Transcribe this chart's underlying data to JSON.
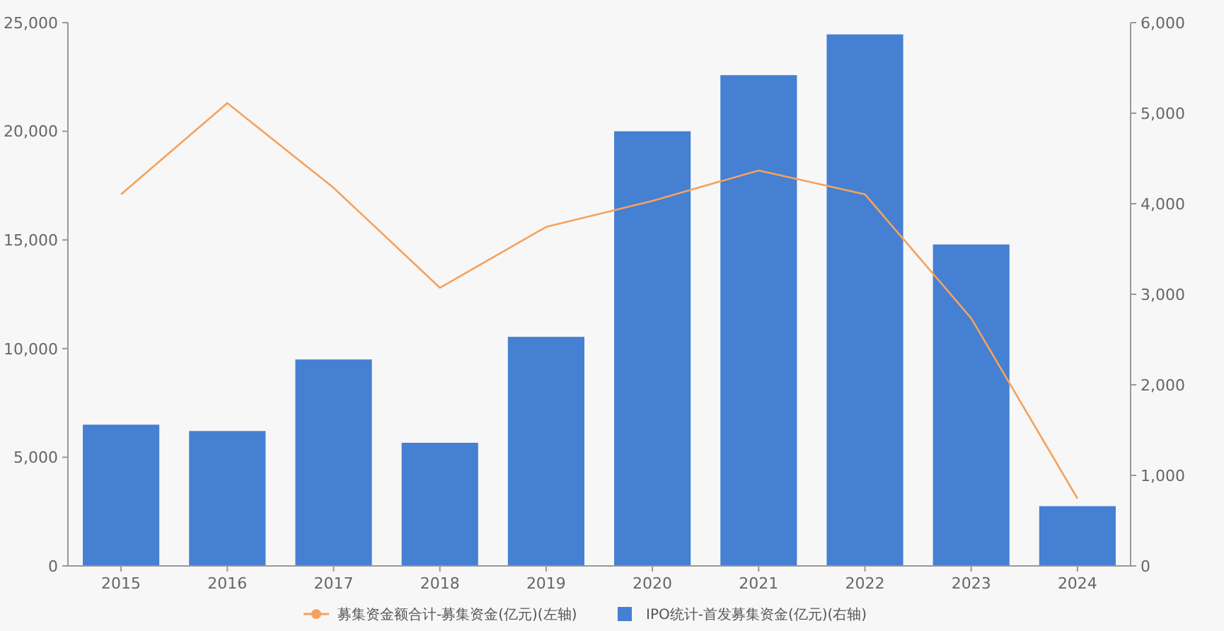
{
  "chart_data": {
    "type": "bar",
    "categories": [
      "2015",
      "2016",
      "2017",
      "2018",
      "2019",
      "2020",
      "2021",
      "2022",
      "2023",
      "2024"
    ],
    "series": [
      {
        "name": "募集资金额合计-募集资金(亿元)(左轴)",
        "type": "line",
        "color": "#f5a25d",
        "values": [
          17100,
          21300,
          17400,
          12800,
          15600,
          16800,
          18200,
          17100,
          11400,
          3100
        ]
      },
      {
        "name": "IPO统计-首发募集资金(亿元)(右轴)",
        "axis": "y2",
        "color": "#4580d2",
        "values": [
          1560,
          1490,
          2280,
          1360,
          2530,
          4800,
          5420,
          5870,
          3550,
          660
        ]
      }
    ],
    "ylim": [
      0,
      25000
    ],
    "yticks": [
      {
        "value": 0,
        "label": "0"
      },
      {
        "value": 5000,
        "label": "5,000"
      },
      {
        "value": 10000,
        "label": "10,000"
      },
      {
        "value": 15000,
        "label": "15,000"
      },
      {
        "value": 20000,
        "label": "20,000"
      },
      {
        "value": 25000,
        "label": "25,000"
      }
    ],
    "y2lim": [
      0,
      6000
    ],
    "y2ticks": [
      {
        "value": 0,
        "label": "0"
      },
      {
        "value": 1000,
        "label": "1,000"
      },
      {
        "value": 2000,
        "label": "2,000"
      },
      {
        "value": 3000,
        "label": "3,000"
      },
      {
        "value": 4000,
        "label": "4,000"
      },
      {
        "value": 5000,
        "label": "5,000"
      },
      {
        "value": 6000,
        "label": "6,000"
      }
    ],
    "grid": false,
    "legend": "bottom",
    "marker": "none"
  }
}
